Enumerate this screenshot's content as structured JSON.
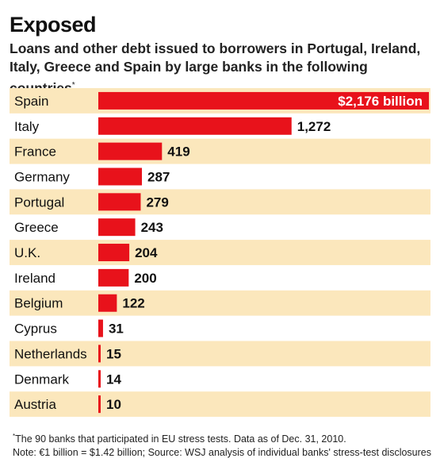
{
  "header": {
    "title": "Exposed",
    "subtitle": "Loans and other debt issued to borrowers in Portugal, Ireland, Italy, Greece and Spain by large banks in the following countries",
    "subtitle_mark": "*"
  },
  "footnote": {
    "mark": "*",
    "line1": "The 90 banks that participated in EU stress tests. Data as of Dec. 31, 2010.",
    "line2": "Note: €1 billion = $1.42 billion; Source: WSJ analysis of individual banks' stress-test disclosures"
  },
  "colors": {
    "bar": "#e8121b",
    "band": "#fbe7bc"
  },
  "chart_data": {
    "type": "bar",
    "orientation": "horizontal",
    "unit": "billion",
    "categories": [
      "Spain",
      "Italy",
      "France",
      "Germany",
      "Portugal",
      "Greece",
      "U.K.",
      "Ireland",
      "Belgium",
      "Cyprus",
      "Netherlands",
      "Denmark",
      "Austria"
    ],
    "values": [
      2176,
      1272,
      419,
      287,
      279,
      243,
      204,
      200,
      122,
      31,
      15,
      14,
      10
    ],
    "value_labels": [
      "$2,176 billion",
      "1,272",
      "419",
      "287",
      "279",
      "243",
      "204",
      "200",
      "122",
      "31",
      "15",
      "14",
      "10"
    ],
    "xlim": [
      0,
      2176
    ]
  }
}
